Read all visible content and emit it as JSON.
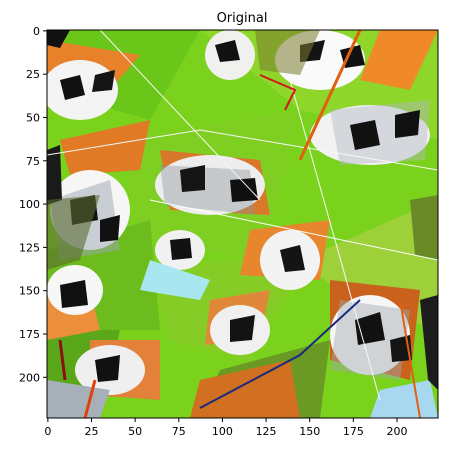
{
  "figure": {
    "title": "Original",
    "x_ticks": [
      "0",
      "25",
      "50",
      "75",
      "100",
      "125",
      "150",
      "175",
      "200"
    ],
    "y_ticks": [
      "0",
      "25",
      "50",
      "75",
      "100",
      "125",
      "150",
      "175",
      "200"
    ]
  },
  "image_content": {
    "description_tag": "polygon-mosaic",
    "dominant_colors": [
      "#7ad21c",
      "#e8822a",
      "#ffffff",
      "#111111",
      "#9aa6b0",
      "#a8d84a",
      "#c85a18",
      "#5a7a20"
    ]
  }
}
